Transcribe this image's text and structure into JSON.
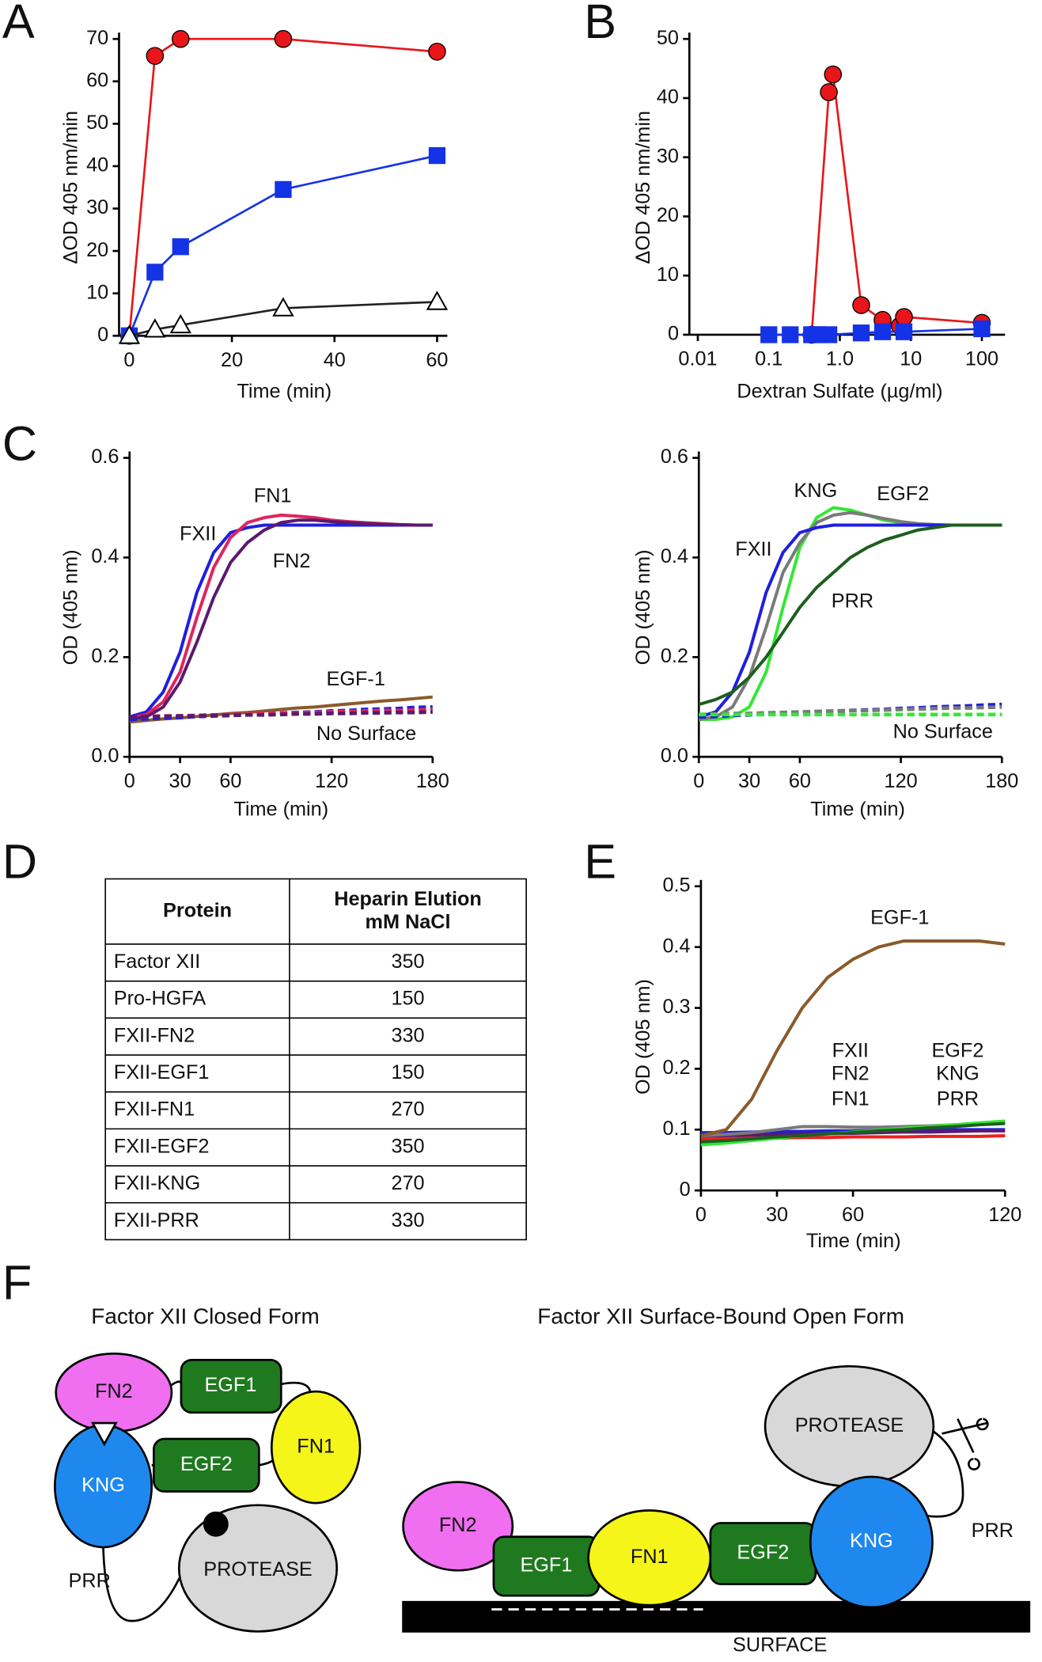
{
  "panels": [
    "A",
    "B",
    "C",
    "D",
    "E",
    "F"
  ],
  "chart_data": [
    {
      "type": "line",
      "x": [
        0,
        5,
        10,
        30,
        60
      ],
      "xlim": [
        -2,
        62
      ],
      "xticks": [
        0,
        20,
        40,
        60
      ],
      "ylim": [
        0,
        70
      ],
      "yticks": [
        0,
        10,
        20,
        30,
        40,
        50,
        60,
        70
      ],
      "xlabel": "Time (min)",
      "ylabel": "ΔOD 405 nm/min",
      "series": [
        {
          "color": "#e8161b",
          "marker": "circle",
          "values": [
            0,
            66,
            70,
            70,
            67
          ]
        },
        {
          "color": "#1432e6",
          "marker": "square",
          "values": [
            0,
            15,
            21,
            34.5,
            42.5
          ]
        },
        {
          "color": "#222222",
          "marker": "triangle",
          "values": [
            0,
            1.5,
            2.5,
            6.5,
            8
          ]
        }
      ]
    },
    {
      "type": "line",
      "xscale": "log",
      "xlim": [
        0.0076,
        212
      ],
      "xticks": [
        0.01,
        0.1,
        {
          "value": 1,
          "label": "1.0"
        },
        10,
        100
      ],
      "ylim": [
        0,
        50
      ],
      "yticks": [
        0,
        10,
        20,
        30,
        40,
        50
      ],
      "xlabel": "Dextran Sulfate (µg/ml)",
      "ylabel": "ΔOD 405 nm/min",
      "series": [
        {
          "color": "#e8161b",
          "marker": "circle",
          "x": [
            0.4,
            0.7,
            0.8,
            2,
            4,
            7,
            8,
            100
          ],
          "values": [
            0,
            41,
            44,
            5,
            2.5,
            1.5,
            3,
            2
          ]
        },
        {
          "color": "#1432e6",
          "marker": "square",
          "x": [
            0.1,
            0.2,
            0.4,
            0.5,
            0.7,
            2,
            4,
            8,
            100
          ],
          "values": [
            0,
            0,
            0,
            0,
            0,
            0.3,
            0.5,
            0.5,
            1
          ]
        }
      ]
    },
    {
      "type": "line",
      "x": [
        0,
        10,
        20,
        30,
        40,
        50,
        60,
        70,
        80,
        90,
        100,
        110,
        120,
        130,
        140,
        150,
        160,
        170,
        180
      ],
      "xlim": [
        0,
        180
      ],
      "xticks": [
        0,
        30,
        60,
        120,
        180
      ],
      "ylim": [
        0,
        0.6
      ],
      "yticks": [
        {
          "value": 0,
          "label": "0.0"
        },
        0.2,
        0.4,
        0.6
      ],
      "xlabel": "Time (min)",
      "ylabel": "OD (405 nm)",
      "annotation": "No Surface",
      "series": [
        {
          "name": "FXII",
          "color": "#1f1fe0",
          "values": [
            0.08,
            0.09,
            0.13,
            0.21,
            0.33,
            0.41,
            0.45,
            0.46,
            0.465,
            0.465,
            0.465,
            0.465,
            0.465,
            0.465,
            0.465,
            0.465,
            0.465,
            0.465,
            0.465
          ]
        },
        {
          "name": "FN1",
          "color": "#e0245e",
          "values": [
            0.078,
            0.085,
            0.11,
            0.17,
            0.28,
            0.38,
            0.44,
            0.47,
            0.48,
            0.485,
            0.483,
            0.48,
            0.475,
            0.472,
            0.47,
            0.468,
            0.466,
            0.465,
            0.465
          ]
        },
        {
          "name": "FN2",
          "color": "#5a1a6e",
          "values": [
            0.075,
            0.08,
            0.1,
            0.15,
            0.23,
            0.32,
            0.39,
            0.43,
            0.455,
            0.47,
            0.475,
            0.475,
            0.472,
            0.47,
            0.468,
            0.467,
            0.466,
            0.465,
            0.465
          ]
        },
        {
          "name": "EGF-1",
          "color": "#8b5a2b",
          "values": [
            0.07,
            0.073,
            0.076,
            0.078,
            0.081,
            0.084,
            0.087,
            0.089,
            0.092,
            0.095,
            0.098,
            0.1,
            0.103,
            0.106,
            0.109,
            0.112,
            0.114,
            0.117,
            0.12
          ]
        },
        {
          "color": "#1f1fe0",
          "dash": true,
          "values": [
            0.075,
            0.076,
            0.078,
            0.079,
            0.081,
            0.082,
            0.083,
            0.085,
            0.086,
            0.088,
            0.089,
            0.09,
            0.092,
            0.093,
            0.095,
            0.096,
            0.097,
            0.099,
            0.1
          ]
        },
        {
          "color": "#e0245e",
          "dash": true,
          "values": [
            0.08,
            0.081,
            0.082,
            0.082,
            0.083,
            0.084,
            0.085,
            0.086,
            0.087,
            0.088,
            0.088,
            0.089,
            0.09,
            0.091,
            0.092,
            0.093,
            0.093,
            0.094,
            0.095
          ]
        },
        {
          "color": "#5a1a6e",
          "dash": true,
          "values": [
            0.08,
            0.081,
            0.081,
            0.082,
            0.082,
            0.083,
            0.083,
            0.084,
            0.084,
            0.085,
            0.086,
            0.086,
            0.087,
            0.087,
            0.088,
            0.088,
            0.089,
            0.089,
            0.09
          ]
        }
      ]
    },
    {
      "type": "line",
      "x": [
        0,
        10,
        20,
        30,
        40,
        50,
        60,
        70,
        80,
        90,
        100,
        110,
        120,
        130,
        140,
        150,
        160,
        170,
        180
      ],
      "xlim": [
        0,
        180
      ],
      "xticks": [
        0,
        30,
        60,
        120,
        180
      ],
      "ylim": [
        0,
        0.6
      ],
      "yticks": [
        {
          "value": 0,
          "label": "0.0"
        },
        0.2,
        0.4,
        0.6
      ],
      "xlabel": "Time (min)",
      "ylabel": "OD (405 nm)",
      "annotation": "No Surface",
      "series": [
        {
          "name": "KNG",
          "color": "#33e833",
          "values": [
            0.075,
            0.075,
            0.08,
            0.1,
            0.17,
            0.3,
            0.42,
            0.48,
            0.5,
            0.495,
            0.485,
            0.475,
            0.47,
            0.467,
            0.465,
            0.465,
            0.465,
            0.465,
            0.465
          ]
        },
        {
          "name": "EGF2",
          "color": "#7a7a7a",
          "values": [
            0.075,
            0.08,
            0.1,
            0.16,
            0.26,
            0.37,
            0.43,
            0.47,
            0.485,
            0.49,
            0.485,
            0.478,
            0.472,
            0.468,
            0.466,
            0.465,
            0.465,
            0.465,
            0.465
          ]
        },
        {
          "name": "FXII",
          "color": "#1f1fe0",
          "values": [
            0.08,
            0.09,
            0.13,
            0.21,
            0.33,
            0.41,
            0.45,
            0.46,
            0.465,
            0.465,
            0.465,
            0.465,
            0.465,
            0.465,
            0.465,
            0.465,
            0.465,
            0.465,
            0.465
          ]
        },
        {
          "name": "PRR",
          "color": "#1e5e1e",
          "values": [
            0.105,
            0.115,
            0.13,
            0.16,
            0.2,
            0.25,
            0.3,
            0.34,
            0.37,
            0.4,
            0.42,
            0.435,
            0.445,
            0.455,
            0.46,
            0.465,
            0.465,
            0.465,
            0.465
          ]
        },
        {
          "color": "#1f1fe0",
          "dash": true,
          "values": [
            0.08,
            0.081,
            0.083,
            0.084,
            0.086,
            0.087,
            0.088,
            0.09,
            0.091,
            0.093,
            0.094,
            0.095,
            0.097,
            0.098,
            0.1,
            0.101,
            0.102,
            0.104,
            0.105
          ]
        },
        {
          "color": "#7a7a7a",
          "dash": true,
          "values": [
            0.085,
            0.086,
            0.087,
            0.087,
            0.088,
            0.089,
            0.09,
            0.091,
            0.092,
            0.093,
            0.093,
            0.094,
            0.095,
            0.096,
            0.097,
            0.098,
            0.098,
            0.099,
            0.1
          ]
        },
        {
          "color": "#33e833",
          "dash": true,
          "values": [
            0.085,
            0.085,
            0.085,
            0.085,
            0.085,
            0.085,
            0.085,
            0.085,
            0.085,
            0.085,
            0.085,
            0.085,
            0.085,
            0.085,
            0.085,
            0.085,
            0.085,
            0.085,
            0.085
          ]
        }
      ]
    },
    {
      "type": "line",
      "x": [
        0,
        10,
        20,
        30,
        40,
        50,
        60,
        70,
        80,
        90,
        100,
        110,
        120
      ],
      "xlim": [
        0,
        120
      ],
      "xticks": [
        0,
        30,
        60,
        120
      ],
      "ylim": [
        0,
        0.5
      ],
      "yticks": [
        0,
        0.1,
        0.2,
        0.3,
        0.4,
        0.5
      ],
      "xlabel": "Time (min)",
      "ylabel": "OD (405 nm)",
      "series": [
        {
          "name": "FXII",
          "color": "#1f1fe0",
          "values": [
            0.095,
            0.095,
            0.096,
            0.097,
            0.097,
            0.098,
            0.098,
            0.099,
            0.099,
            0.1,
            0.1,
            0.1,
            0.1
          ]
        },
        {
          "name": "FN2",
          "color": "#5a1a6e",
          "values": [
            0.09,
            0.09,
            0.091,
            0.092,
            0.093,
            0.093,
            0.094,
            0.095,
            0.096,
            0.096,
            0.097,
            0.098,
            0.098
          ]
        },
        {
          "name": "FN1",
          "color": "#ee2020",
          "values": [
            0.085,
            0.085,
            0.086,
            0.086,
            0.087,
            0.087,
            0.088,
            0.088,
            0.088,
            0.089,
            0.089,
            0.089,
            0.09
          ]
        },
        {
          "name": "EGF2",
          "color": "#7a7a7a",
          "values": [
            0.09,
            0.092,
            0.095,
            0.1,
            0.105,
            0.105,
            0.104,
            0.104,
            0.105,
            0.106,
            0.108,
            0.11,
            0.112
          ]
        },
        {
          "name": "KNG",
          "color": "#33e833",
          "values": [
            0.075,
            0.078,
            0.082,
            0.086,
            0.09,
            0.093,
            0.096,
            0.099,
            0.102,
            0.105,
            0.108,
            0.111,
            0.114
          ]
        },
        {
          "name": "PRR",
          "color": "#1e5e1e",
          "values": [
            0.08,
            0.082,
            0.085,
            0.088,
            0.09,
            0.093,
            0.095,
            0.098,
            0.1,
            0.103,
            0.105,
            0.108,
            0.11
          ]
        },
        {
          "name": "EGF-1",
          "color": "#8b5a2b",
          "values": [
            0.09,
            0.1,
            0.15,
            0.23,
            0.3,
            0.35,
            0.38,
            0.4,
            0.41,
            0.41,
            0.41,
            0.41,
            0.405
          ]
        }
      ]
    }
  ],
  "table": {
    "columns": [
      [
        "Protein"
      ],
      [
        "Heparin Elution",
        "mM NaCl"
      ]
    ],
    "rows": [
      [
        "Factor XII",
        350
      ],
      [
        "Pro-HGFA",
        150
      ],
      [
        "FXII-FN2",
        330
      ],
      [
        "FXII-EGF1",
        150
      ],
      [
        "FXII-FN1",
        270
      ],
      [
        "FXII-EGF2",
        350
      ],
      [
        "FXII-KNG",
        270
      ],
      [
        "FXII-PRR",
        330
      ]
    ]
  },
  "diagram": {
    "closed": {
      "title": "Factor XII Closed Form",
      "nodes": [
        "FN2",
        "EGF1",
        "KNG",
        "EGF2",
        "FN1",
        "PROTEASE"
      ],
      "linker": "PRR"
    },
    "open": {
      "title": "Factor XII Surface-Bound Open Form",
      "nodes": [
        "FN2",
        "EGF1",
        "FN1",
        "EGF2",
        "KNG",
        "PROTEASE"
      ],
      "linker": "PRR",
      "surface": "SURFACE"
    }
  }
}
